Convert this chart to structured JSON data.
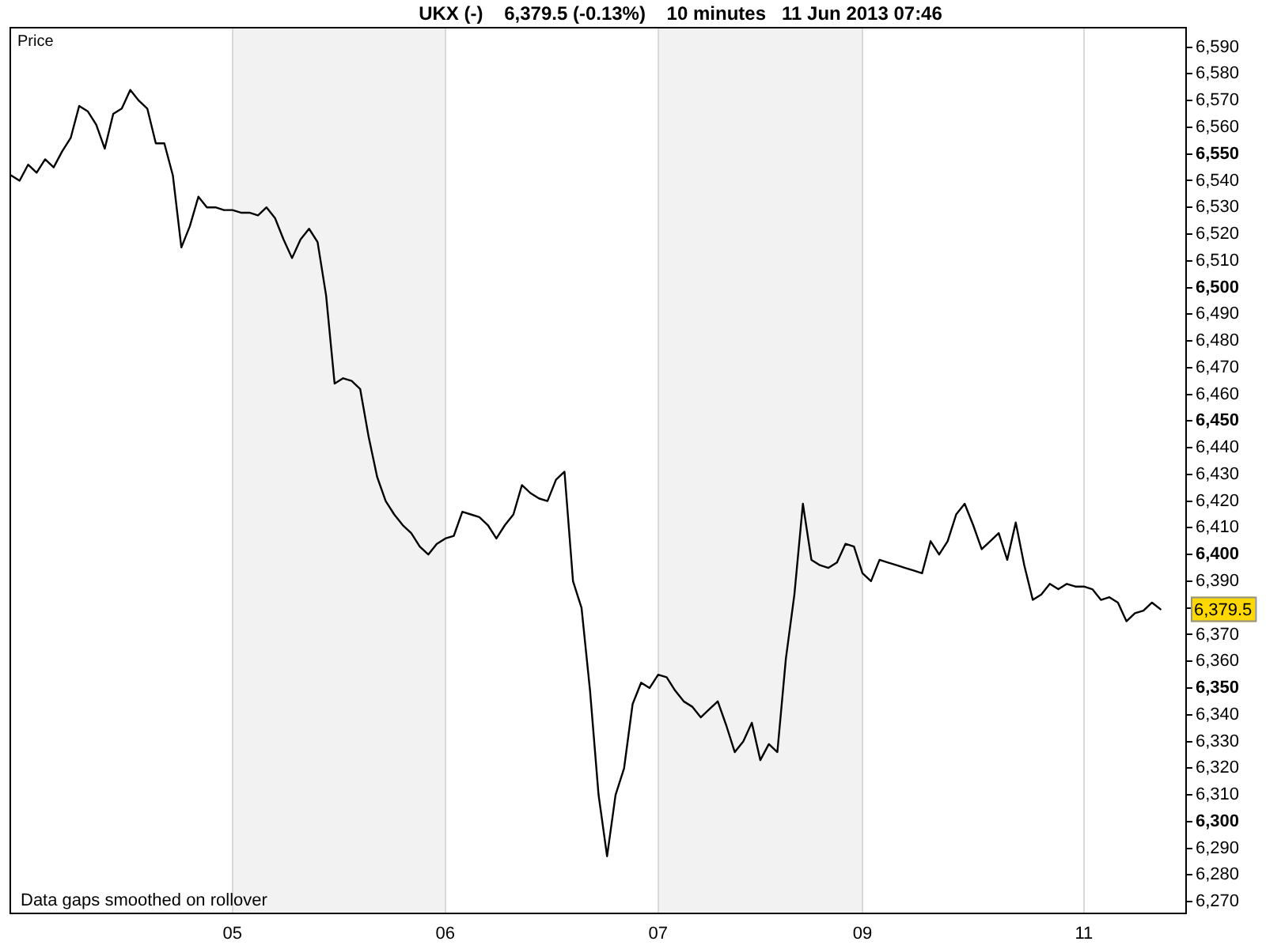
{
  "chart_data": {
    "type": "line",
    "title": "UKX (-)    6,379.5 (-0.13%)    10 minutes   11 Jun 2013 07:46",
    "ylabel": "Price",
    "categories": [
      null,
      null,
      null,
      null,
      null,
      null,
      null,
      null,
      null,
      null,
      null,
      null,
      null,
      null,
      null,
      null,
      null,
      null,
      null,
      null,
      null,
      null,
      null,
      null,
      null,
      null,
      "05",
      null,
      null,
      null,
      null,
      null,
      null,
      null,
      null,
      null,
      null,
      null,
      null,
      null,
      null,
      null,
      null,
      null,
      null,
      null,
      null,
      null,
      null,
      null,
      null,
      "06",
      null,
      null,
      null,
      null,
      null,
      null,
      null,
      null,
      null,
      null,
      null,
      null,
      null,
      null,
      null,
      null,
      null,
      null,
      null,
      null,
      null,
      null,
      null,
      null,
      "07",
      null,
      null,
      null,
      null,
      null,
      null,
      null,
      null,
      null,
      null,
      null,
      null,
      null,
      null,
      null,
      null,
      null,
      null,
      null,
      null,
      null,
      null,
      null,
      "09",
      null,
      null,
      null,
      null,
      null,
      null,
      null,
      null,
      null,
      null,
      null,
      null,
      null,
      null,
      null,
      null,
      null,
      null,
      null,
      null,
      null,
      null,
      null,
      null,
      null,
      "11",
      null,
      null,
      null,
      null,
      null,
      null,
      null,
      null,
      null,
      null,
      null,
      null
    ],
    "values": [
      6542,
      6540,
      6546,
      6543,
      6548,
      6545,
      6551,
      6556,
      6568,
      6566,
      6561,
      6552,
      6565,
      6567,
      6574,
      6570,
      6567,
      6554,
      6554,
      6542,
      6515,
      6523,
      6534,
      6530,
      6530,
      6529,
      6529,
      6528,
      6528,
      6527,
      6530,
      6526,
      6518,
      6511,
      6518,
      6522,
      6517,
      6497,
      6464,
      6466,
      6465,
      6462,
      6444,
      6429,
      6420,
      6415,
      6411,
      6408,
      6403,
      6400,
      6404,
      6406,
      6407,
      6416,
      6415,
      6414,
      6411,
      6406,
      6411,
      6415,
      6426,
      6423,
      6421,
      6420,
      6428,
      6431,
      6390,
      6380,
      6349,
      6310,
      6287,
      6310,
      6320,
      6344,
      6352,
      6350,
      6355,
      6354,
      6349,
      6345,
      6343,
      6339,
      6342,
      6345,
      6336,
      6326,
      6330,
      6337,
      6323,
      6329,
      6326,
      6361,
      6385,
      6419,
      6398,
      6396,
      6395,
      6397,
      6404,
      6403,
      6393,
      6390,
      6398,
      6397,
      6396,
      6395,
      6394,
      6393,
      6405,
      6400,
      6405,
      6415,
      6419,
      6411,
      6402,
      6405,
      6408,
      6398,
      6412,
      6396,
      6383,
      6385,
      6389,
      6387,
      6389,
      6388,
      6388,
      6387,
      6383,
      6384,
      6382,
      6375,
      6378,
      6379,
      6382,
      6379.5,
      null,
      null,
      null
    ],
    "color": "#000000",
    "marker": "none",
    "line_style": "solid",
    "grid": "x",
    "ylim": [
      6266,
      6597
    ],
    "yticks": [
      {
        "value": 6270,
        "label": "6,270"
      },
      {
        "value": 6280,
        "label": "6,280"
      },
      {
        "value": 6290,
        "label": "6,290"
      },
      {
        "value": 6300,
        "label": "6,300"
      },
      {
        "value": 6310,
        "label": "6,310"
      },
      {
        "value": 6320,
        "label": "6,320"
      },
      {
        "value": 6330,
        "label": "6,330"
      },
      {
        "value": 6340,
        "label": "6,340"
      },
      {
        "value": 6350,
        "label": "6,350"
      },
      {
        "value": 6360,
        "label": "6,360"
      },
      {
        "value": 6370,
        "label": "6,370"
      },
      {
        "value": 6380,
        "label": null
      },
      {
        "value": 6390,
        "label": "6,390"
      },
      {
        "value": 6400,
        "label": "6,400"
      },
      {
        "value": 6410,
        "label": "6,410"
      },
      {
        "value": 6420,
        "label": "6,420"
      },
      {
        "value": 6430,
        "label": "6,430"
      },
      {
        "value": 6440,
        "label": "6,440"
      },
      {
        "value": 6450,
        "label": "6,450"
      },
      {
        "value": 6460,
        "label": "6,460"
      },
      {
        "value": 6470,
        "label": "6,470"
      },
      {
        "value": 6480,
        "label": "6,480"
      },
      {
        "value": 6490,
        "label": "6,490"
      },
      {
        "value": 6500,
        "label": "6,500"
      },
      {
        "value": 6510,
        "label": "6,510"
      },
      {
        "value": 6520,
        "label": "6,520"
      },
      {
        "value": 6530,
        "label": "6,530"
      },
      {
        "value": 6540,
        "label": "6,540"
      },
      {
        "value": 6550,
        "label": "6,550"
      },
      {
        "value": 6560,
        "label": "6,560"
      },
      {
        "value": 6570,
        "label": "6,570"
      },
      {
        "value": 6580,
        "label": "6,580"
      },
      {
        "value": 6590,
        "label": "6,590"
      }
    ],
    "bands": [
      {
        "axis": "x",
        "from": "05",
        "to": "06",
        "color": "#f2f2f2"
      },
      {
        "axis": "x",
        "from": "07",
        "to": "09",
        "color": "#f2f2f2"
      }
    ],
    "annotations": [
      "Data gaps smoothed on rollover",
      {
        "text": "6,379.5",
        "y": 6379.5
      }
    ]
  }
}
